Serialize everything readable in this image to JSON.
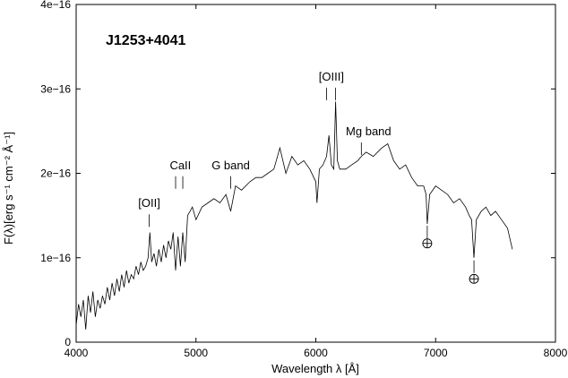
{
  "chart_data": {
    "type": "line",
    "title": "J1253+4041",
    "xlabel": "Wavelength λ [Å]",
    "ylabel": "F(λ)[erg s⁻¹ cm⁻² Å⁻¹]",
    "xlim": [
      4000,
      8000
    ],
    "ylim": [
      0,
      4e-16
    ],
    "x_ticks": [
      4000,
      5000,
      6000,
      7000,
      8000
    ],
    "x_tick_labels": [
      "4000",
      "5000",
      "6000",
      "7000",
      "8000"
    ],
    "y_ticks": [
      0,
      1e-16,
      2e-16,
      3e-16,
      4e-16
    ],
    "y_tick_labels": [
      "0",
      "1e−16",
      "2e−16",
      "3e−16",
      "4e−16"
    ],
    "grid": false,
    "series": [
      {
        "x": [
          4000,
          4020,
          4040,
          4060,
          4080,
          4100,
          4120,
          4140,
          4160,
          4180,
          4200,
          4220,
          4240,
          4260,
          4280,
          4300,
          4320,
          4340,
          4360,
          4380,
          4400,
          4420,
          4440,
          4460,
          4480,
          4500,
          4520,
          4540,
          4560,
          4580,
          4600,
          4615,
          4630,
          4650,
          4670,
          4690,
          4710,
          4730,
          4750,
          4770,
          4790,
          4810,
          4830,
          4850,
          4870,
          4890,
          4910,
          4930,
          4950,
          4970,
          5000,
          5050,
          5100,
          5150,
          5200,
          5250,
          5290,
          5330,
          5380,
          5450,
          5500,
          5550,
          5600,
          5650,
          5700,
          5750,
          5800,
          5850,
          5900,
          5950,
          6000,
          6010,
          6030,
          6060,
          6090,
          6110,
          6130,
          6150,
          6165,
          6180,
          6200,
          6250,
          6300,
          6350,
          6380,
          6420,
          6480,
          6550,
          6600,
          6650,
          6700,
          6750,
          6800,
          6850,
          6900,
          6920,
          6930,
          6950,
          7000,
          7050,
          7100,
          7150,
          7200,
          7250,
          7280,
          7300,
          7320,
          7340,
          7380,
          7420,
          7460,
          7500,
          7550,
          7600,
          7640
        ],
        "y": [
          2e-17,
          4.5e-17,
          3e-17,
          5e-17,
          1.5e-17,
          5.5e-17,
          3.5e-17,
          6e-17,
          3e-17,
          5e-17,
          4e-17,
          5.5e-17,
          4.5e-17,
          6.5e-17,
          5e-17,
          7e-17,
          5.5e-17,
          7.5e-17,
          6e-17,
          8e-17,
          6.5e-17,
          8.5e-17,
          7e-17,
          8e-17,
          7.5e-17,
          9e-17,
          8e-17,
          9.5e-17,
          8.5e-17,
          9e-17,
          1e-16,
          1.3e-16,
          9.5e-17,
          1.05e-16,
          9e-17,
          1.1e-16,
          9.5e-17,
          1.15e-16,
          1e-16,
          1.2e-16,
          1.1e-16,
          1.3e-16,
          8.5e-17,
          1.25e-16,
          9e-17,
          1.3e-16,
          9.5e-17,
          1.5e-16,
          1.55e-16,
          1.6e-16,
          1.45e-16,
          1.6e-16,
          1.65e-16,
          1.7e-16,
          1.65e-16,
          1.75e-16,
          1.55e-16,
          1.85e-16,
          1.8e-16,
          1.9e-16,
          1.95e-16,
          1.95e-16,
          2e-16,
          2.05e-16,
          2.3e-16,
          2e-16,
          2.2e-16,
          2.1e-16,
          2.15e-16,
          2.05e-16,
          1.9e-16,
          1.65e-16,
          2.05e-16,
          2.1e-16,
          2.2e-16,
          2.45e-16,
          2.1e-16,
          2.05e-16,
          2.85e-16,
          2.15e-16,
          2.05e-16,
          2.05e-16,
          2.1e-16,
          2.15e-16,
          2.2e-16,
          2.25e-16,
          2.2e-16,
          2.3e-16,
          2.35e-16,
          2.15e-16,
          2.05e-16,
          2.1e-16,
          1.95e-16,
          1.85e-16,
          1.85e-16,
          1.75e-16,
          1.4e-16,
          1.75e-16,
          1.85e-16,
          1.8e-16,
          1.75e-16,
          1.65e-16,
          1.7e-16,
          1.6e-16,
          1.5e-16,
          1.45e-16,
          1e-16,
          1.45e-16,
          1.55e-16,
          1.6e-16,
          1.5e-16,
          1.55e-16,
          1.45e-16,
          1.35e-16,
          1.1e-16
        ]
      }
    ],
    "annotations": [
      {
        "text": "[OII]",
        "x": 4610,
        "y": 1.6e-16,
        "marks": [
          4610
        ]
      },
      {
        "text": "CaII",
        "x": 4870,
        "y": 2.05e-16,
        "marks": [
          4830,
          4890
        ]
      },
      {
        "text": "G band",
        "x": 5290,
        "y": 2.05e-16,
        "marks": [
          5290
        ]
      },
      {
        "text": "[OIII]",
        "x": 6130,
        "y": 3.1e-16,
        "marks": [
          6090,
          6165
        ]
      },
      {
        "text": "Mg band",
        "x": 6440,
        "y": 2.45e-16,
        "marks": [
          6380
        ]
      }
    ],
    "telluric": [
      {
        "x": 6930,
        "y": 1.17e-16,
        "tick_top": 1.38e-16,
        "tick_bottom": 1.22e-16
      },
      {
        "x": 7320,
        "y": 7.5e-17,
        "tick_top": 9.7e-17,
        "tick_bottom": 8.2e-17
      }
    ]
  }
}
